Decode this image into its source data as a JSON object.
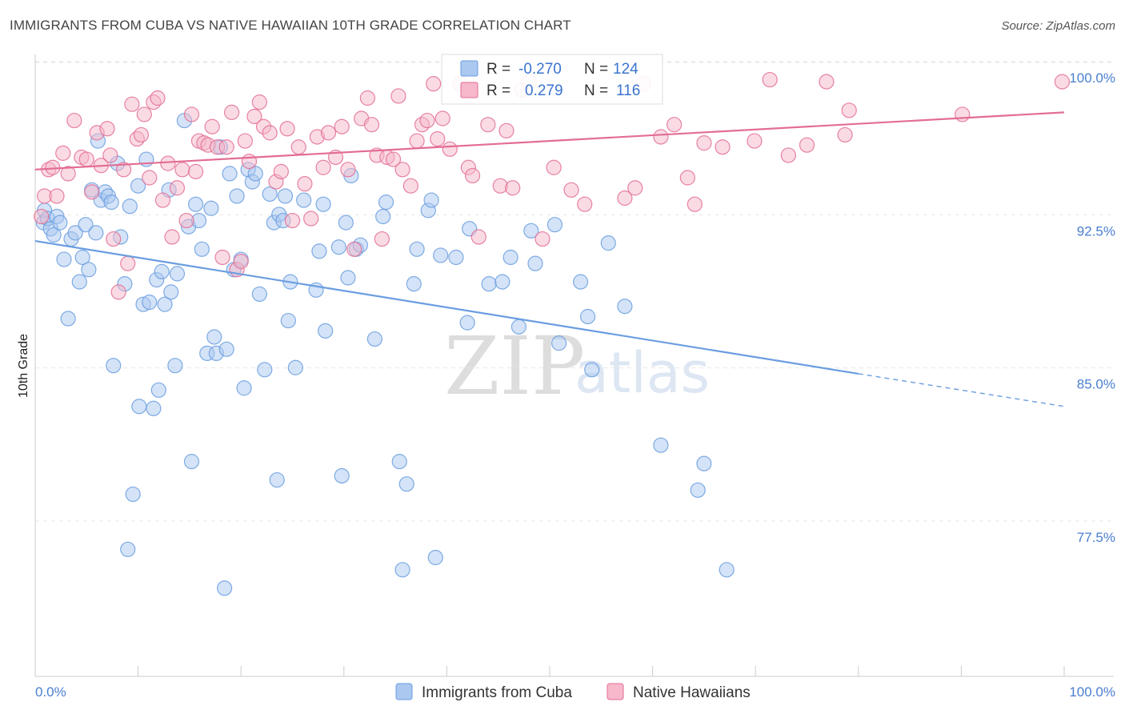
{
  "header": {
    "title": "IMMIGRANTS FROM CUBA VS NATIVE HAWAIIAN 10TH GRADE CORRELATION CHART",
    "source": "Source: ZipAtlas.com"
  },
  "watermark": {
    "zip": "ZIP",
    "atlas": "atlas"
  },
  "legend_box": {
    "rows": [
      {
        "r_label": "R =",
        "r_value": "-0.270",
        "n_label": "N =",
        "n_value": "124",
        "color": "#aac8f0"
      },
      {
        "r_label": "R =",
        "r_value": "0.279",
        "n_label": "N =",
        "n_value": "116",
        "color": "#f6b8ca"
      }
    ]
  },
  "bottom_legend": {
    "items": [
      {
        "label": "Immigrants from Cuba",
        "color": "#aac8f0"
      },
      {
        "label": "Native Hawaiians",
        "color": "#f6b8ca"
      }
    ]
  },
  "chart_data": {
    "type": "scatter",
    "ylabel": "10th Grade",
    "xlim": [
      0,
      100
    ],
    "ylim": [
      71.5,
      100.8
    ],
    "x_tick_labels": [
      "0.0%",
      "100.0%"
    ],
    "y_ticks": [
      77.5,
      85.0,
      92.5,
      100.0
    ],
    "y_tick_labels": [
      "77.5%",
      "85.0%",
      "92.5%",
      "100.0%"
    ],
    "grid": true,
    "series": [
      {
        "name": "Immigrants from Cuba",
        "color": "#6a9de0",
        "fill": "#aac8f0",
        "trend": {
          "x0": 0,
          "y0": 92.0,
          "x1": 80,
          "y1": 85.5,
          "x_dash_end": 100,
          "y_dash_end": 83.9
        },
        "points": [
          [
            0.8,
            92.9
          ],
          [
            0.9,
            93.5
          ],
          [
            1.2,
            93.1
          ],
          [
            1.5,
            92.6
          ],
          [
            1.8,
            92.3
          ],
          [
            2.1,
            93.2
          ],
          [
            2.4,
            92.9
          ],
          [
            2.8,
            91.1
          ],
          [
            3.2,
            88.2
          ],
          [
            3.5,
            92.1
          ],
          [
            3.9,
            92.4
          ],
          [
            4.3,
            90.0
          ],
          [
            4.6,
            91.2
          ],
          [
            4.9,
            92.8
          ],
          [
            5.2,
            90.6
          ],
          [
            5.5,
            94.5
          ],
          [
            5.9,
            92.4
          ],
          [
            6.1,
            96.9
          ],
          [
            6.4,
            94.0
          ],
          [
            6.8,
            94.4
          ],
          [
            7.1,
            94.2
          ],
          [
            7.4,
            93.9
          ],
          [
            7.6,
            85.9
          ],
          [
            8.0,
            95.8
          ],
          [
            8.3,
            92.2
          ],
          [
            8.7,
            89.9
          ],
          [
            9.0,
            76.9
          ],
          [
            9.2,
            93.7
          ],
          [
            9.5,
            79.6
          ],
          [
            10.0,
            94.7
          ],
          [
            10.1,
            83.9
          ],
          [
            10.5,
            88.9
          ],
          [
            10.8,
            96.0
          ],
          [
            11.1,
            89.0
          ],
          [
            11.5,
            83.8
          ],
          [
            11.8,
            90.1
          ],
          [
            12.0,
            84.7
          ],
          [
            12.3,
            90.5
          ],
          [
            12.6,
            88.9
          ],
          [
            13.0,
            94.5
          ],
          [
            13.2,
            89.5
          ],
          [
            13.6,
            85.9
          ],
          [
            13.8,
            90.4
          ],
          [
            14.5,
            97.9
          ],
          [
            14.9,
            92.7
          ],
          [
            15.2,
            81.2
          ],
          [
            15.6,
            93.8
          ],
          [
            15.9,
            93.0
          ],
          [
            16.2,
            91.6
          ],
          [
            16.7,
            86.5
          ],
          [
            17.1,
            93.6
          ],
          [
            17.4,
            87.3
          ],
          [
            17.6,
            86.5
          ],
          [
            18.0,
            96.6
          ],
          [
            18.4,
            75.0
          ],
          [
            18.6,
            86.7
          ],
          [
            18.9,
            95.3
          ],
          [
            19.3,
            90.6
          ],
          [
            19.6,
            94.2
          ],
          [
            20.0,
            91.1
          ],
          [
            20.3,
            84.8
          ],
          [
            20.7,
            95.5
          ],
          [
            21.1,
            94.9
          ],
          [
            21.4,
            95.3
          ],
          [
            21.8,
            89.4
          ],
          [
            22.3,
            85.7
          ],
          [
            22.8,
            94.3
          ],
          [
            23.2,
            92.9
          ],
          [
            23.5,
            80.3
          ],
          [
            23.7,
            93.3
          ],
          [
            24.1,
            93.0
          ],
          [
            24.3,
            94.2
          ],
          [
            24.6,
            88.1
          ],
          [
            24.8,
            90.0
          ],
          [
            25.3,
            85.8
          ],
          [
            26.1,
            94.0
          ],
          [
            27.3,
            89.6
          ],
          [
            27.6,
            91.5
          ],
          [
            28.0,
            93.8
          ],
          [
            28.2,
            87.6
          ],
          [
            29.5,
            91.7
          ],
          [
            29.8,
            80.5
          ],
          [
            30.2,
            92.9
          ],
          [
            30.4,
            90.2
          ],
          [
            30.7,
            95.2
          ],
          [
            31.2,
            91.6
          ],
          [
            31.6,
            91.8
          ],
          [
            33.0,
            87.2
          ],
          [
            33.8,
            93.2
          ],
          [
            34.1,
            93.9
          ],
          [
            35.4,
            81.2
          ],
          [
            35.7,
            75.9
          ],
          [
            36.1,
            80.1
          ],
          [
            36.8,
            89.9
          ],
          [
            37.1,
            91.6
          ],
          [
            38.2,
            93.5
          ],
          [
            38.5,
            94.0
          ],
          [
            38.9,
            76.5
          ],
          [
            39.4,
            91.3
          ],
          [
            40.9,
            91.2
          ],
          [
            42.0,
            88.0
          ],
          [
            42.2,
            92.6
          ],
          [
            44.1,
            89.9
          ],
          [
            45.4,
            90.0
          ],
          [
            46.2,
            91.2
          ],
          [
            47.0,
            87.8
          ],
          [
            48.2,
            92.5
          ],
          [
            48.6,
            90.9
          ],
          [
            50.5,
            92.8
          ],
          [
            50.9,
            87.0
          ],
          [
            53.0,
            90.0
          ],
          [
            53.7,
            88.3
          ],
          [
            54.1,
            85.7
          ],
          [
            55.7,
            91.9
          ],
          [
            57.3,
            88.8
          ],
          [
            60.8,
            82.0
          ],
          [
            64.4,
            79.8
          ],
          [
            65.0,
            81.1
          ],
          [
            67.2,
            75.9
          ]
        ]
      },
      {
        "name": "Native Hawaiians",
        "color": "#e36d94",
        "fill": "#f6b8ca",
        "trend": {
          "x0": 0,
          "y0": 95.5,
          "x1": 100,
          "y1": 98.3
        },
        "points": [
          [
            0.6,
            93.2
          ],
          [
            0.9,
            94.2
          ],
          [
            1.3,
            95.5
          ],
          [
            1.7,
            95.6
          ],
          [
            2.1,
            94.2
          ],
          [
            2.7,
            96.3
          ],
          [
            3.2,
            95.3
          ],
          [
            3.8,
            97.9
          ],
          [
            4.5,
            96.1
          ],
          [
            5.0,
            96.0
          ],
          [
            5.5,
            94.4
          ],
          [
            6.0,
            97.3
          ],
          [
            6.4,
            95.7
          ],
          [
            7.0,
            97.5
          ],
          [
            7.3,
            96.2
          ],
          [
            7.6,
            92.1
          ],
          [
            8.1,
            89.5
          ],
          [
            8.6,
            95.5
          ],
          [
            9.0,
            90.9
          ],
          [
            9.4,
            98.7
          ],
          [
            9.9,
            97.0
          ],
          [
            10.3,
            97.2
          ],
          [
            10.6,
            98.2
          ],
          [
            11.1,
            95.1
          ],
          [
            11.5,
            98.8
          ],
          [
            11.9,
            99.0
          ],
          [
            12.4,
            94.0
          ],
          [
            12.9,
            95.8
          ],
          [
            13.3,
            92.2
          ],
          [
            13.8,
            94.6
          ],
          [
            14.3,
            95.5
          ],
          [
            14.7,
            93.0
          ],
          [
            15.2,
            98.2
          ],
          [
            15.6,
            95.4
          ],
          [
            15.9,
            96.9
          ],
          [
            16.4,
            96.8
          ],
          [
            16.8,
            96.7
          ],
          [
            17.2,
            97.6
          ],
          [
            17.7,
            96.6
          ],
          [
            18.2,
            91.2
          ],
          [
            18.6,
            96.6
          ],
          [
            19.1,
            98.3
          ],
          [
            19.6,
            90.6
          ],
          [
            20.0,
            91.0
          ],
          [
            20.4,
            96.9
          ],
          [
            20.8,
            95.9
          ],
          [
            21.3,
            98.1
          ],
          [
            21.8,
            98.8
          ],
          [
            22.2,
            97.6
          ],
          [
            22.8,
            97.3
          ],
          [
            23.4,
            94.9
          ],
          [
            23.9,
            95.4
          ],
          [
            24.5,
            97.5
          ],
          [
            25.0,
            93.0
          ],
          [
            25.6,
            96.6
          ],
          [
            26.2,
            94.8
          ],
          [
            26.8,
            93.1
          ],
          [
            27.4,
            97.1
          ],
          [
            28.0,
            95.6
          ],
          [
            28.5,
            97.3
          ],
          [
            29.2,
            96.1
          ],
          [
            29.8,
            97.6
          ],
          [
            30.4,
            95.5
          ],
          [
            31.0,
            91.6
          ],
          [
            31.7,
            98.0
          ],
          [
            32.3,
            99.0
          ],
          [
            32.7,
            97.7
          ],
          [
            33.2,
            96.2
          ],
          [
            33.7,
            92.1
          ],
          [
            34.2,
            96.1
          ],
          [
            34.8,
            96.0
          ],
          [
            35.3,
            99.1
          ],
          [
            35.7,
            95.5
          ],
          [
            36.5,
            94.7
          ],
          [
            37.1,
            96.9
          ],
          [
            37.6,
            97.7
          ],
          [
            38.1,
            97.9
          ],
          [
            38.7,
            99.7
          ],
          [
            39.1,
            97.0
          ],
          [
            39.6,
            98.0
          ],
          [
            40.3,
            96.5
          ],
          [
            41.3,
            99.7
          ],
          [
            42.1,
            95.6
          ],
          [
            42.5,
            95.2
          ],
          [
            43.1,
            92.2
          ],
          [
            44.0,
            97.7
          ],
          [
            45.2,
            94.7
          ],
          [
            45.8,
            97.4
          ],
          [
            46.4,
            94.6
          ],
          [
            47.3,
            99.4
          ],
          [
            48.0,
            99.8
          ],
          [
            49.3,
            92.1
          ],
          [
            50.4,
            95.6
          ],
          [
            52.1,
            94.5
          ],
          [
            53.4,
            93.8
          ],
          [
            57.3,
            94.1
          ],
          [
            58.3,
            94.6
          ],
          [
            59.1,
            99.7
          ],
          [
            60.8,
            97.1
          ],
          [
            62.1,
            97.7
          ],
          [
            63.4,
            95.1
          ],
          [
            64.1,
            93.8
          ],
          [
            65.0,
            96.8
          ],
          [
            66.8,
            96.6
          ],
          [
            69.9,
            96.9
          ],
          [
            71.4,
            99.9
          ],
          [
            73.2,
            96.2
          ],
          [
            75.0,
            96.7
          ],
          [
            76.9,
            99.8
          ],
          [
            78.7,
            97.2
          ],
          [
            79.1,
            98.4
          ],
          [
            90.1,
            98.2
          ],
          [
            99.8,
            99.8
          ]
        ]
      }
    ]
  }
}
